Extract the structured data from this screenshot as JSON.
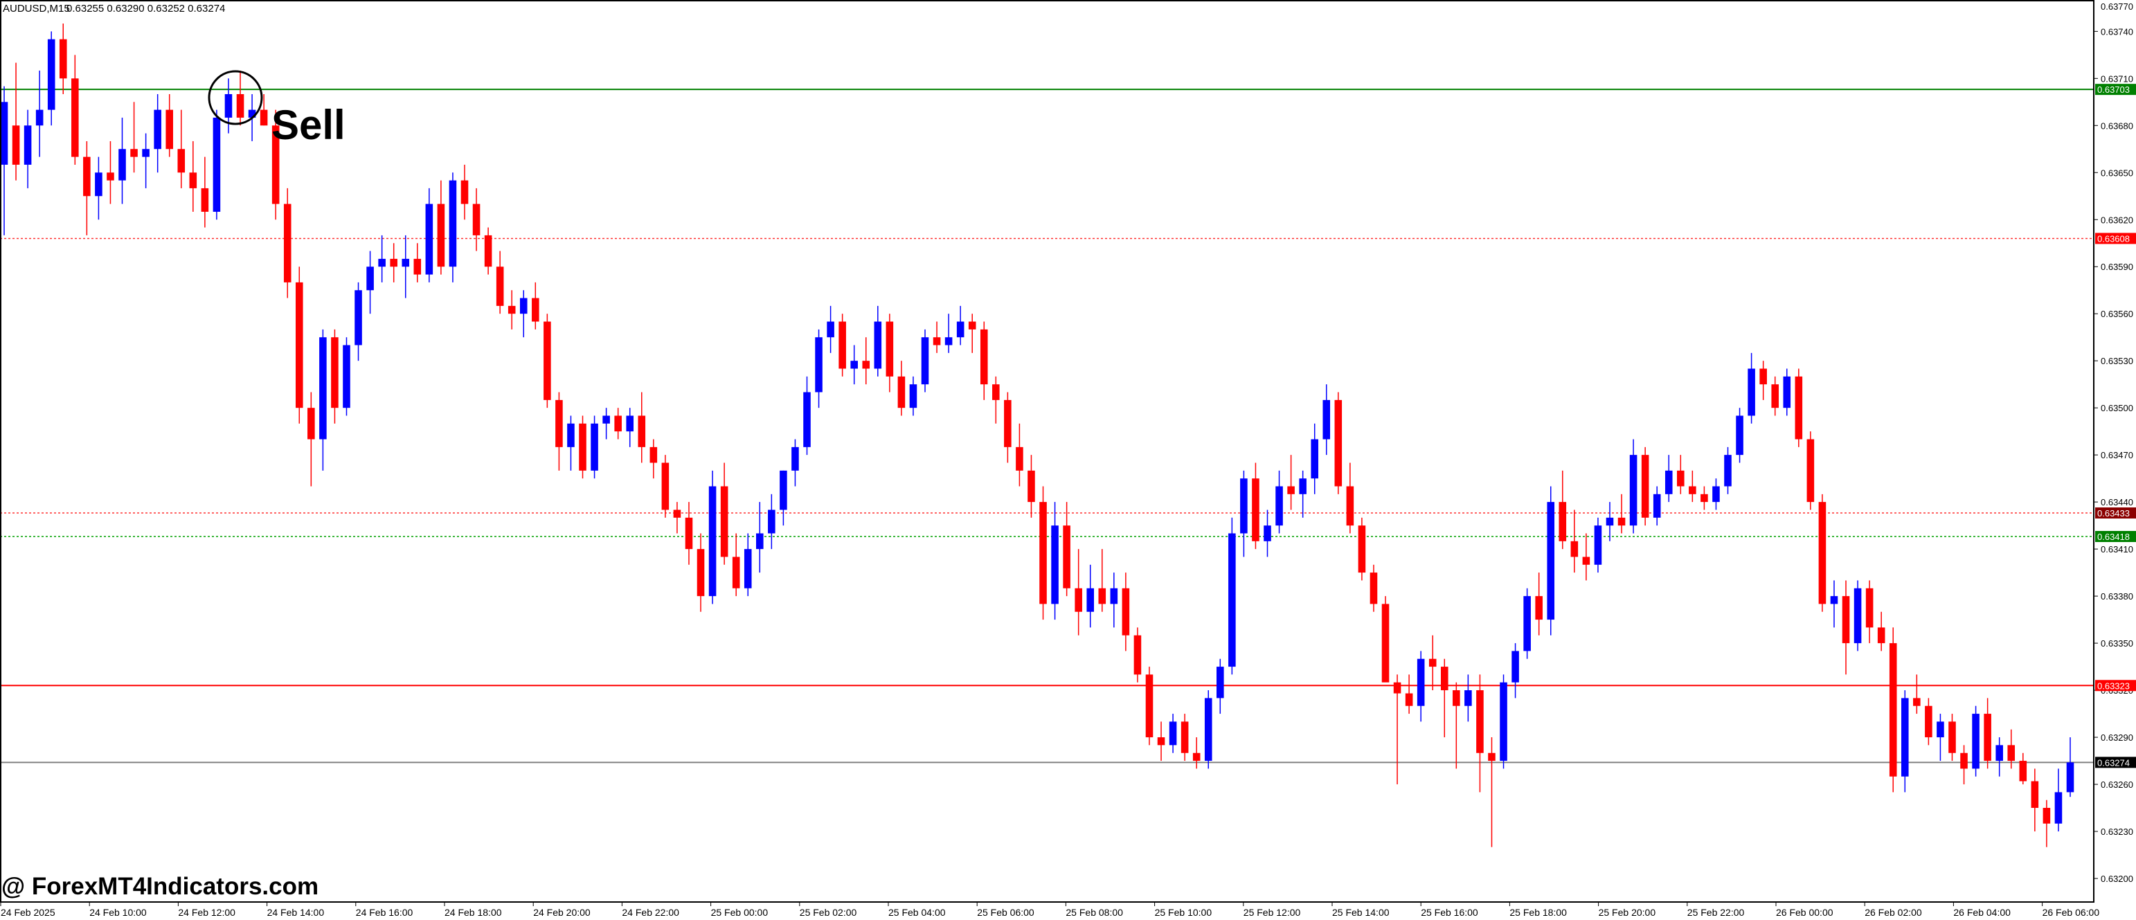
{
  "header": {
    "symbol_label": "AUDUSD,M15",
    "ohlc_text": "0.63255 0.63290 0.63252 0.63274"
  },
  "annotation": {
    "signal_text": "Sell"
  },
  "watermark": {
    "text": "@ ForexMT4Indicators.com"
  },
  "colors": {
    "bull": "#0000ff",
    "bear": "#ff0000",
    "green_level": "#008000",
    "red_level": "#ff0000",
    "dotted_red": "#ff3030",
    "dotted_green": "#00a000",
    "current_price": "#000000",
    "grey_line": "#808080"
  },
  "chart_data": {
    "type": "candlestick",
    "timeframe": "M15",
    "y_range": [
      0.63185,
      0.6376
    ],
    "price_ticks": [
      "0.63740",
      "0.63710",
      "0.63680",
      "0.63650",
      "0.63620",
      "0.63590",
      "0.63560",
      "0.63530",
      "0.63500",
      "0.63470",
      "0.63440",
      "0.63410",
      "0.63380",
      "0.63350",
      "0.63320",
      "0.63290",
      "0.63260",
      "0.63230",
      "0.63200"
    ],
    "time_ticks": [
      "24 Feb 2025",
      "24 Feb 10:00",
      "24 Feb 12:00",
      "24 Feb 14:00",
      "24 Feb 16:00",
      "24 Feb 18:00",
      "24 Feb 20:00",
      "24 Feb 22:00",
      "25 Feb 00:00",
      "25 Feb 02:00",
      "25 Feb 04:00",
      "25 Feb 06:00",
      "25 Feb 08:00",
      "25 Feb 10:00",
      "25 Feb 12:00",
      "25 Feb 14:00",
      "25 Feb 16:00",
      "25 Feb 18:00",
      "25 Feb 20:00",
      "25 Feb 22:00",
      "26 Feb 00:00",
      "26 Feb 02:00",
      "26 Feb 04:00",
      "26 Feb 06:00"
    ],
    "levels": [
      {
        "price": 0.63703,
        "label": "0.63703",
        "style": "solid",
        "color": "green"
      },
      {
        "price": 0.63608,
        "label": "0.63608",
        "style": "dotted",
        "color": "red"
      },
      {
        "price": 0.63433,
        "label": "0.63433",
        "style": "dotted",
        "color": "darkred"
      },
      {
        "price": 0.63418,
        "label": "0.63418",
        "style": "dotted",
        "color": "green"
      },
      {
        "price": 0.63323,
        "label": "0.63323",
        "style": "solid",
        "color": "red"
      },
      {
        "price": 0.63274,
        "label": "0.63274",
        "style": "solid",
        "color": "current"
      }
    ],
    "signal": {
      "label": "Sell",
      "bar_index": 13
    },
    "ohlc": [
      [
        0.63655,
        0.63705,
        0.6361,
        0.63695
      ],
      [
        0.6368,
        0.6372,
        0.63645,
        0.63655
      ],
      [
        0.63655,
        0.6369,
        0.6364,
        0.6368
      ],
      [
        0.6368,
        0.63715,
        0.6366,
        0.6369
      ],
      [
        0.6369,
        0.6374,
        0.6368,
        0.63735
      ],
      [
        0.63735,
        0.63745,
        0.637,
        0.6371
      ],
      [
        0.6371,
        0.63725,
        0.63655,
        0.6366
      ],
      [
        0.6366,
        0.6367,
        0.6361,
        0.63635
      ],
      [
        0.63635,
        0.6366,
        0.6362,
        0.6365
      ],
      [
        0.6365,
        0.6367,
        0.6363,
        0.63645
      ],
      [
        0.63645,
        0.63685,
        0.6363,
        0.63665
      ],
      [
        0.63665,
        0.63695,
        0.6365,
        0.6366
      ],
      [
        0.6366,
        0.63675,
        0.6364,
        0.63665
      ],
      [
        0.63665,
        0.637,
        0.6365,
        0.6369
      ],
      [
        0.6369,
        0.637,
        0.6366,
        0.63665
      ],
      [
        0.63665,
        0.6369,
        0.6364,
        0.6365
      ],
      [
        0.6365,
        0.6367,
        0.63625,
        0.6364
      ],
      [
        0.6364,
        0.6366,
        0.63615,
        0.63625
      ],
      [
        0.63625,
        0.6369,
        0.6362,
        0.63685
      ],
      [
        0.63685,
        0.6371,
        0.63675,
        0.637
      ],
      [
        0.637,
        0.63715,
        0.6368,
        0.63685
      ],
      [
        0.63685,
        0.637,
        0.6367,
        0.6369
      ],
      [
        0.6369,
        0.637,
        0.6368,
        0.6368
      ],
      [
        0.6368,
        0.6369,
        0.6362,
        0.6363
      ],
      [
        0.6363,
        0.6364,
        0.6357,
        0.6358
      ],
      [
        0.6358,
        0.6359,
        0.6349,
        0.635
      ],
      [
        0.635,
        0.6351,
        0.6345,
        0.6348
      ],
      [
        0.6348,
        0.6355,
        0.6346,
        0.63545
      ],
      [
        0.63545,
        0.6355,
        0.6349,
        0.635
      ],
      [
        0.635,
        0.63545,
        0.63495,
        0.6354
      ],
      [
        0.6354,
        0.6358,
        0.6353,
        0.63575
      ],
      [
        0.63575,
        0.636,
        0.6356,
        0.6359
      ],
      [
        0.6359,
        0.6361,
        0.6358,
        0.63595
      ],
      [
        0.63595,
        0.63605,
        0.6358,
        0.6359
      ],
      [
        0.6359,
        0.6361,
        0.6357,
        0.63595
      ],
      [
        0.63595,
        0.63605,
        0.6358,
        0.63585
      ],
      [
        0.63585,
        0.6364,
        0.6358,
        0.6363
      ],
      [
        0.6363,
        0.63645,
        0.63585,
        0.6359
      ],
      [
        0.6359,
        0.6365,
        0.6358,
        0.63645
      ],
      [
        0.63645,
        0.63655,
        0.6362,
        0.6363
      ],
      [
        0.6363,
        0.6364,
        0.636,
        0.6361
      ],
      [
        0.6361,
        0.63615,
        0.63585,
        0.6359
      ],
      [
        0.6359,
        0.636,
        0.6356,
        0.63565
      ],
      [
        0.63565,
        0.63575,
        0.6355,
        0.6356
      ],
      [
        0.6356,
        0.63575,
        0.63545,
        0.6357
      ],
      [
        0.6357,
        0.6358,
        0.6355,
        0.63555
      ],
      [
        0.63555,
        0.6356,
        0.635,
        0.63505
      ],
      [
        0.63505,
        0.6351,
        0.6346,
        0.63475
      ],
      [
        0.63475,
        0.63495,
        0.6346,
        0.6349
      ],
      [
        0.6349,
        0.63495,
        0.63455,
        0.6346
      ],
      [
        0.6346,
        0.63495,
        0.63455,
        0.6349
      ],
      [
        0.6349,
        0.635,
        0.6348,
        0.63495
      ],
      [
        0.63495,
        0.635,
        0.6348,
        0.63485
      ],
      [
        0.63485,
        0.635,
        0.63475,
        0.63495
      ],
      [
        0.63495,
        0.6351,
        0.63465,
        0.63475
      ],
      [
        0.63475,
        0.6348,
        0.63455,
        0.63465
      ],
      [
        0.63465,
        0.6347,
        0.6343,
        0.63435
      ],
      [
        0.63435,
        0.6344,
        0.6342,
        0.6343
      ],
      [
        0.6343,
        0.6344,
        0.634,
        0.6341
      ],
      [
        0.6341,
        0.6342,
        0.6337,
        0.6338
      ],
      [
        0.6338,
        0.6346,
        0.63375,
        0.6345
      ],
      [
        0.6345,
        0.63465,
        0.634,
        0.63405
      ],
      [
        0.63405,
        0.6342,
        0.6338,
        0.63385
      ],
      [
        0.63385,
        0.6342,
        0.6338,
        0.6341
      ],
      [
        0.6341,
        0.6344,
        0.63395,
        0.6342
      ],
      [
        0.6342,
        0.63445,
        0.6341,
        0.63435
      ],
      [
        0.63435,
        0.6346,
        0.63425,
        0.6346
      ],
      [
        0.6346,
        0.6348,
        0.6345,
        0.63475
      ],
      [
        0.63475,
        0.6352,
        0.6347,
        0.6351
      ],
      [
        0.6351,
        0.6355,
        0.635,
        0.63545
      ],
      [
        0.63545,
        0.63565,
        0.63535,
        0.63555
      ],
      [
        0.63555,
        0.6356,
        0.6352,
        0.63525
      ],
      [
        0.63525,
        0.6354,
        0.63515,
        0.6353
      ],
      [
        0.6353,
        0.63545,
        0.63515,
        0.63525
      ],
      [
        0.63525,
        0.63565,
        0.6352,
        0.63555
      ],
      [
        0.63555,
        0.6356,
        0.6351,
        0.6352
      ],
      [
        0.6352,
        0.6353,
        0.63495,
        0.635
      ],
      [
        0.635,
        0.6352,
        0.63495,
        0.63515
      ],
      [
        0.63515,
        0.6355,
        0.6351,
        0.63545
      ],
      [
        0.63545,
        0.63555,
        0.63535,
        0.6354
      ],
      [
        0.6354,
        0.6356,
        0.63535,
        0.63545
      ],
      [
        0.63545,
        0.63565,
        0.6354,
        0.63555
      ],
      [
        0.63555,
        0.6356,
        0.63535,
        0.6355
      ],
      [
        0.6355,
        0.63555,
        0.63505,
        0.63515
      ],
      [
        0.63515,
        0.6352,
        0.6349,
        0.63505
      ],
      [
        0.63505,
        0.6351,
        0.63465,
        0.63475
      ],
      [
        0.63475,
        0.6349,
        0.6345,
        0.6346
      ],
      [
        0.6346,
        0.6347,
        0.6343,
        0.6344
      ],
      [
        0.6344,
        0.6345,
        0.63365,
        0.63375
      ],
      [
        0.63375,
        0.6344,
        0.63365,
        0.63425
      ],
      [
        0.63425,
        0.6344,
        0.6338,
        0.63385
      ],
      [
        0.63385,
        0.6341,
        0.63355,
        0.6337
      ],
      [
        0.6337,
        0.634,
        0.6336,
        0.63385
      ],
      [
        0.63385,
        0.6341,
        0.6337,
        0.63375
      ],
      [
        0.63375,
        0.63395,
        0.6336,
        0.63385
      ],
      [
        0.63385,
        0.63395,
        0.63345,
        0.63355
      ],
      [
        0.63355,
        0.6336,
        0.63325,
        0.6333
      ],
      [
        0.6333,
        0.63335,
        0.63285,
        0.6329
      ],
      [
        0.6329,
        0.633,
        0.63275,
        0.63285
      ],
      [
        0.63285,
        0.63305,
        0.6328,
        0.633
      ],
      [
        0.633,
        0.63305,
        0.63275,
        0.6328
      ],
      [
        0.6328,
        0.6329,
        0.6327,
        0.63275
      ],
      [
        0.63275,
        0.6332,
        0.6327,
        0.63315
      ],
      [
        0.63315,
        0.6334,
        0.63305,
        0.63335
      ],
      [
        0.63335,
        0.6343,
        0.6333,
        0.6342
      ],
      [
        0.6342,
        0.6346,
        0.63405,
        0.63455
      ],
      [
        0.63455,
        0.63465,
        0.6341,
        0.63415
      ],
      [
        0.63415,
        0.63435,
        0.63405,
        0.63425
      ],
      [
        0.63425,
        0.6346,
        0.6342,
        0.6345
      ],
      [
        0.6345,
        0.6347,
        0.63435,
        0.63445
      ],
      [
        0.63445,
        0.6346,
        0.6343,
        0.63455
      ],
      [
        0.63455,
        0.6349,
        0.63445,
        0.6348
      ],
      [
        0.6348,
        0.63515,
        0.6347,
        0.63505
      ],
      [
        0.63505,
        0.6351,
        0.63445,
        0.6345
      ],
      [
        0.6345,
        0.63465,
        0.6342,
        0.63425
      ],
      [
        0.63425,
        0.6343,
        0.6339,
        0.63395
      ],
      [
        0.63395,
        0.634,
        0.6337,
        0.63375
      ],
      [
        0.63375,
        0.6338,
        0.6333,
        0.63325
      ],
      [
        0.63325,
        0.6333,
        0.6326,
        0.63318
      ],
      [
        0.63318,
        0.6333,
        0.63305,
        0.6331
      ],
      [
        0.6331,
        0.63345,
        0.633,
        0.6334
      ],
      [
        0.6334,
        0.63355,
        0.6332,
        0.63335
      ],
      [
        0.63335,
        0.6334,
        0.6329,
        0.6332
      ],
      [
        0.6332,
        0.63325,
        0.6327,
        0.6331
      ],
      [
        0.6331,
        0.6333,
        0.633,
        0.6332
      ],
      [
        0.6332,
        0.6333,
        0.63255,
        0.6328
      ],
      [
        0.6328,
        0.6329,
        0.6322,
        0.63275
      ],
      [
        0.63275,
        0.6333,
        0.6327,
        0.63325
      ],
      [
        0.63325,
        0.6335,
        0.63315,
        0.63345
      ],
      [
        0.63345,
        0.63385,
        0.6334,
        0.6338
      ],
      [
        0.6338,
        0.63395,
        0.63355,
        0.63365
      ],
      [
        0.63365,
        0.6345,
        0.63355,
        0.6344
      ],
      [
        0.6344,
        0.6346,
        0.6341,
        0.63415
      ],
      [
        0.63415,
        0.63435,
        0.63395,
        0.63405
      ],
      [
        0.63405,
        0.6342,
        0.6339,
        0.634
      ],
      [
        0.634,
        0.6343,
        0.63395,
        0.63425
      ],
      [
        0.63425,
        0.6344,
        0.63415,
        0.6343
      ],
      [
        0.6343,
        0.63445,
        0.6342,
        0.63425
      ],
      [
        0.63425,
        0.6348,
        0.6342,
        0.6347
      ],
      [
        0.6347,
        0.63475,
        0.63425,
        0.6343
      ],
      [
        0.6343,
        0.6345,
        0.63425,
        0.63445
      ],
      [
        0.63445,
        0.6347,
        0.6344,
        0.6346
      ],
      [
        0.6346,
        0.6347,
        0.63445,
        0.6345
      ],
      [
        0.6345,
        0.6346,
        0.6344,
        0.63445
      ],
      [
        0.63445,
        0.6345,
        0.63435,
        0.6344
      ],
      [
        0.6344,
        0.63455,
        0.63435,
        0.6345
      ],
      [
        0.6345,
        0.63475,
        0.63445,
        0.6347
      ],
      [
        0.6347,
        0.635,
        0.63465,
        0.63495
      ],
      [
        0.63495,
        0.63535,
        0.6349,
        0.63525
      ],
      [
        0.63525,
        0.6353,
        0.63505,
        0.63515
      ],
      [
        0.63515,
        0.6352,
        0.63495,
        0.635
      ],
      [
        0.635,
        0.63525,
        0.63495,
        0.6352
      ],
      [
        0.6352,
        0.63525,
        0.63475,
        0.6348
      ],
      [
        0.6348,
        0.63485,
        0.63435,
        0.6344
      ],
      [
        0.6344,
        0.63445,
        0.6337,
        0.63375
      ],
      [
        0.63375,
        0.6339,
        0.6336,
        0.6338
      ],
      [
        0.6338,
        0.6339,
        0.6333,
        0.6335
      ],
      [
        0.6335,
        0.6339,
        0.63345,
        0.63385
      ],
      [
        0.63385,
        0.6339,
        0.6335,
        0.6336
      ],
      [
        0.6336,
        0.6337,
        0.63345,
        0.6335
      ],
      [
        0.6335,
        0.6336,
        0.63255,
        0.63265
      ],
      [
        0.63265,
        0.6332,
        0.63255,
        0.63315
      ],
      [
        0.63315,
        0.6333,
        0.63305,
        0.6331
      ],
      [
        0.6331,
        0.63315,
        0.63285,
        0.6329
      ],
      [
        0.6329,
        0.63305,
        0.63275,
        0.633
      ],
      [
        0.633,
        0.63305,
        0.63275,
        0.6328
      ],
      [
        0.6328,
        0.63285,
        0.6326,
        0.6327
      ],
      [
        0.6327,
        0.6331,
        0.63265,
        0.63305
      ],
      [
        0.63305,
        0.63315,
        0.6327,
        0.63275
      ],
      [
        0.63275,
        0.6329,
        0.63265,
        0.63285
      ],
      [
        0.63285,
        0.63295,
        0.6327,
        0.63275
      ],
      [
        0.63275,
        0.6328,
        0.6326,
        0.63262
      ],
      [
        0.63262,
        0.6327,
        0.6323,
        0.63245
      ],
      [
        0.63245,
        0.6325,
        0.6322,
        0.63235
      ],
      [
        0.63235,
        0.6327,
        0.6323,
        0.63255
      ],
      [
        0.63255,
        0.6329,
        0.63252,
        0.63274
      ]
    ]
  }
}
